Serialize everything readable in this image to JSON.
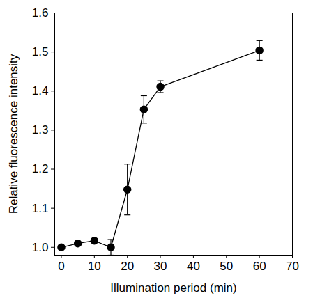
{
  "chart_data": {
    "type": "line",
    "x_label": "Illumination period (min)",
    "y_label": "Relative fluorescence intensity",
    "x": [
      0,
      5,
      10,
      15,
      20,
      25,
      30,
      60
    ],
    "series": [
      {
        "values": [
          1.0,
          1.01,
          1.017,
          1.0,
          1.148,
          1.353,
          1.411,
          1.504
        ],
        "errors": [
          0.005,
          0.005,
          0.005,
          0.02,
          0.065,
          0.035,
          0.015,
          0.025
        ],
        "color": "#000000",
        "marker": "circle",
        "line_style": "solid"
      }
    ],
    "xlim": [
      -2,
      70
    ],
    "ylim": [
      0.98,
      1.6
    ],
    "xticks": [
      0,
      10,
      20,
      30,
      40,
      50,
      60,
      70
    ],
    "yticks": [
      {
        "value": 1,
        "label": "1.0"
      },
      1.1,
      1.2,
      1.3,
      1.4,
      1.5,
      1.6
    ],
    "grid": false
  }
}
